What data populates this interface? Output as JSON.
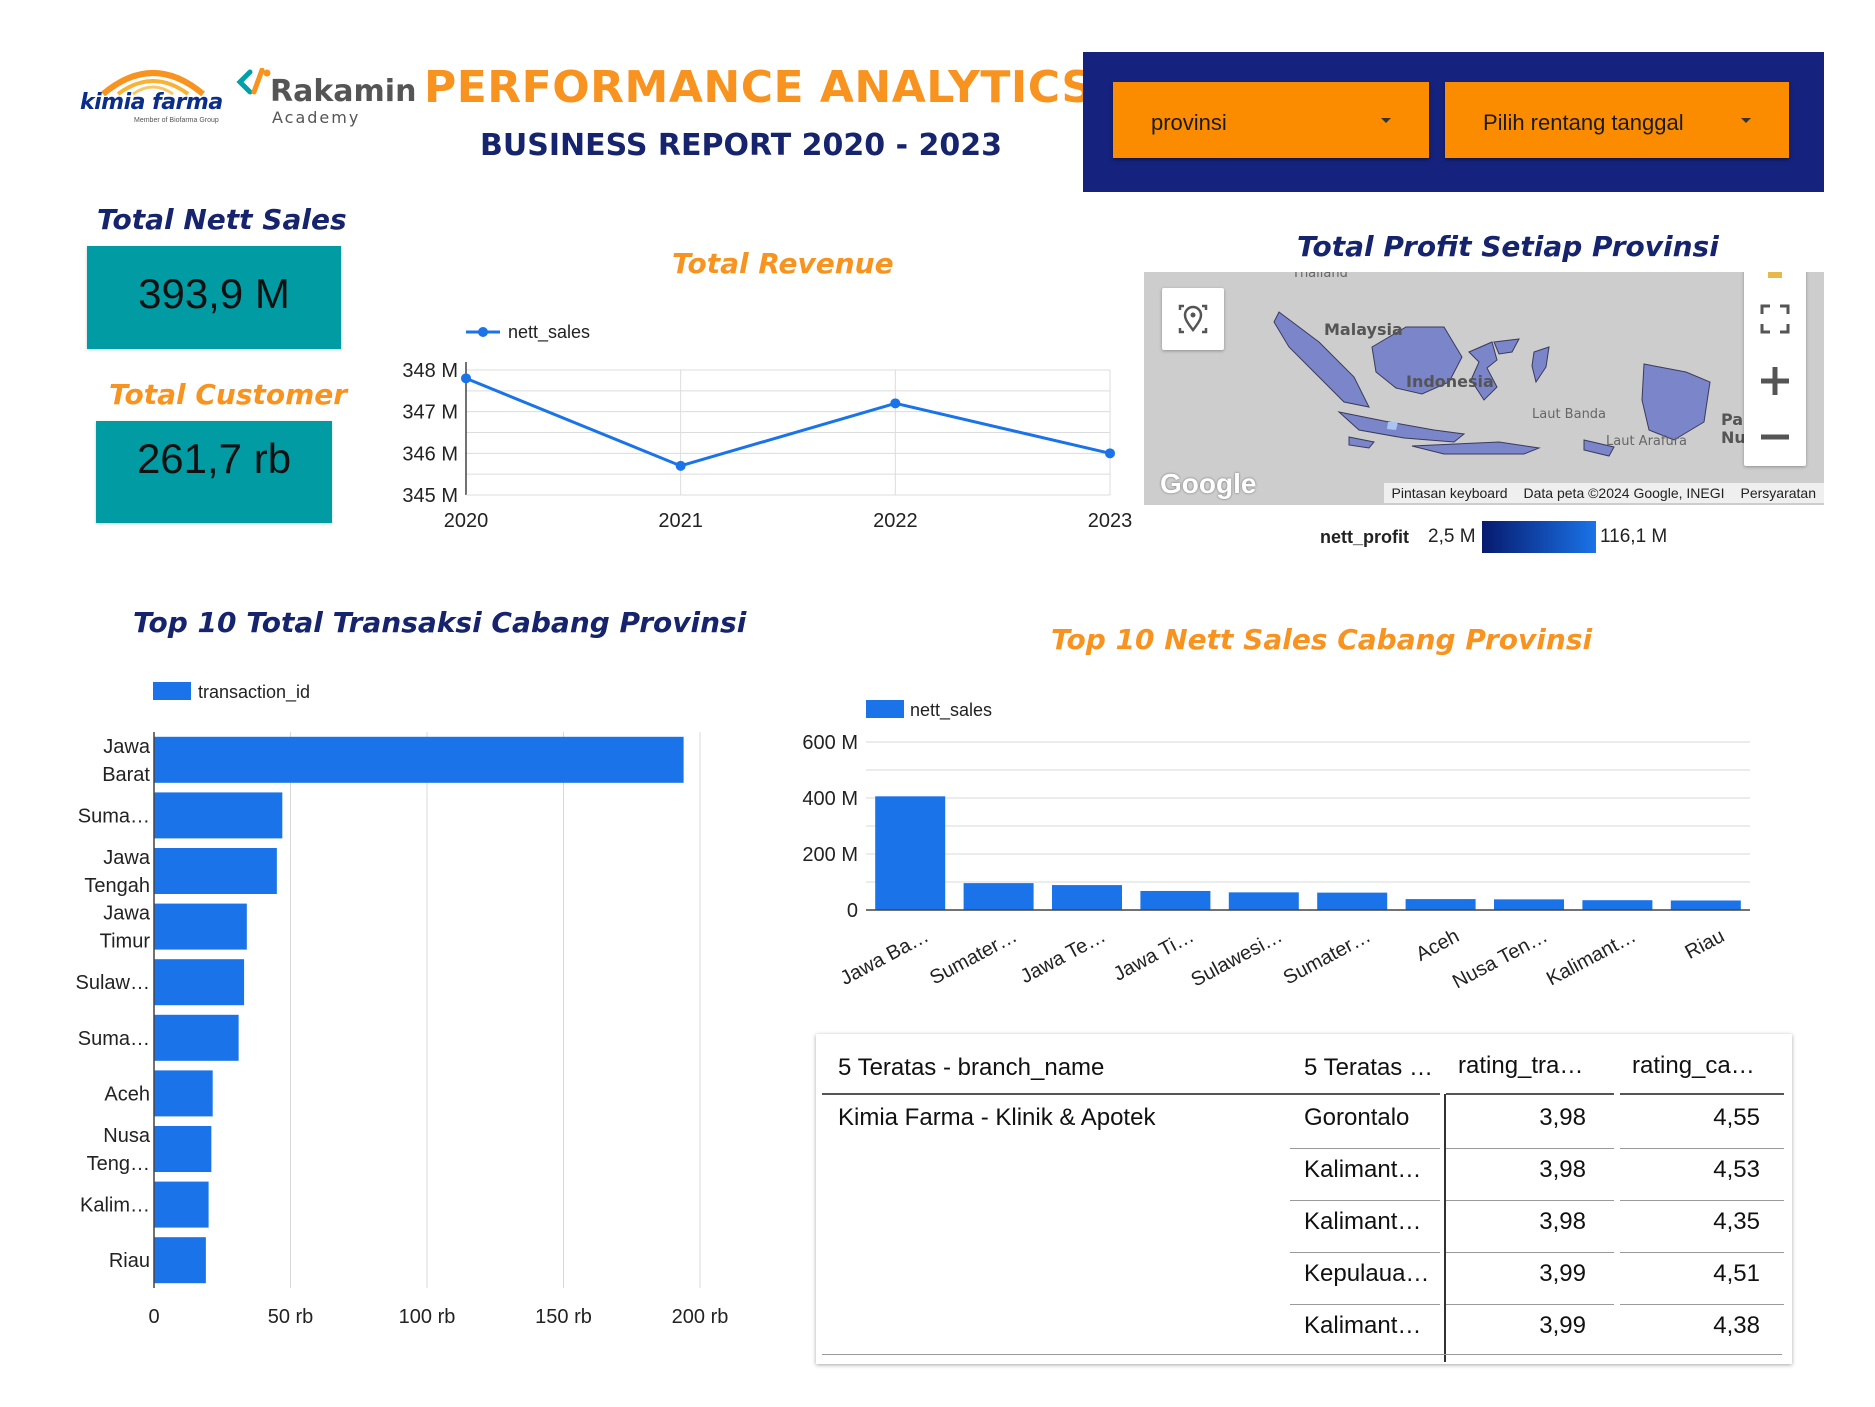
{
  "header": {
    "title": "PERFORMANCE ANALYTICS",
    "subtitle": "BUSINESS REPORT 2020 - 2023",
    "logo_kimia": "kimia farma",
    "logo_kimia_sub": "Member of Biofarma Group",
    "logo_rakamin": "Rakamin",
    "logo_rakamin_sub": "Academy"
  },
  "filters": {
    "province": "provinsi",
    "date_range": "Pilih rentang tanggal"
  },
  "kpis": {
    "nett_sales_title": "Total Nett Sales",
    "nett_sales_value": "393,9 M",
    "customer_title": "Total Customer",
    "customer_value": "261,7 rb"
  },
  "colors": {
    "accent_orange": "#f7931e",
    "navy": "#16236d",
    "teal": "#009ba3",
    "series_blue": "#1a73e8",
    "filter_orange": "#fb8c00",
    "filter_panel": "#16237e"
  },
  "chart_data": [
    {
      "type": "line",
      "title": "Total Revenue",
      "legend": "nett_sales",
      "legend_position": "top-left",
      "grid": true,
      "x": [
        "2020",
        "2021",
        "2022",
        "2023"
      ],
      "y_ticks": [
        "345 M",
        "346 M",
        "347 M",
        "348 M"
      ],
      "ylim": [
        345,
        348
      ],
      "series": [
        {
          "name": "nett_sales",
          "values": [
            347.8,
            345.7,
            347.2,
            346.0
          ]
        }
      ]
    },
    {
      "type": "bar",
      "orientation": "horizontal",
      "title": "Top 10 Total Transaksi Cabang Provinsi",
      "legend": "transaction_id",
      "legend_position": "top-left",
      "grid": true,
      "categories": [
        [
          "Jawa",
          "Barat"
        ],
        [
          "Suma…"
        ],
        [
          "Jawa",
          "Tengah"
        ],
        [
          "Jawa",
          "Timur"
        ],
        [
          "Sulaw…"
        ],
        [
          "Suma…"
        ],
        [
          "Aceh"
        ],
        [
          "Nusa",
          "Teng…"
        ],
        [
          "Kalim…"
        ],
        [
          "Riau"
        ]
      ],
      "values": [
        194000,
        47000,
        45000,
        34000,
        33000,
        31000,
        21500,
        21000,
        20000,
        19000
      ],
      "x_ticks": [
        "0",
        "50 rb",
        "100 rb",
        "150 rb",
        "200 rb"
      ],
      "xlim": [
        0,
        200000
      ]
    },
    {
      "type": "bar",
      "title": "Top 10 Nett Sales Cabang Provinsi",
      "legend": "nett_sales",
      "legend_position": "top-left",
      "grid": true,
      "categories": [
        "Jawa Ba…",
        "Sumater…",
        "Jawa Te…",
        "Jawa Ti…",
        "Sulawesi…",
        "Sumater…",
        "Aceh",
        "Nusa Ten…",
        "Kalimant…",
        "Riau"
      ],
      "values": [
        406,
        96,
        89,
        68,
        63,
        62,
        39,
        38,
        35,
        34
      ],
      "y_ticks": [
        "0",
        "200 M",
        "400 M",
        "600 M"
      ],
      "ylim": [
        0,
        600
      ]
    }
  ],
  "map": {
    "title": "Total Profit Setiap Provinsi",
    "labels": [
      "Malaysia",
      "Indonesia",
      "Laut Banda",
      "Laut Arafura",
      "Thailand",
      "Pap",
      "Nu"
    ],
    "attrib_shortcut": "Pintasan keyboard",
    "attrib_data": "Data peta ©2024 Google, INEGI",
    "attrib_terms": "Persyaratan",
    "google": "Google",
    "legend_name": "nett_profit",
    "legend_min": "2,5 M",
    "legend_max": "116,1 M"
  },
  "table": {
    "headers": [
      "5 Teratas - branch_name",
      "5 Teratas …",
      "rating_tra…",
      "rating_ca…"
    ],
    "branch": "Kimia Farma - Klinik & Apotek",
    "rows": [
      {
        "prov": "Gorontalo",
        "t": "3,98",
        "c": "4,55"
      },
      {
        "prov": "Kalimant…",
        "t": "3,98",
        "c": "4,53"
      },
      {
        "prov": "Kalimant…",
        "t": "3,98",
        "c": "4,35"
      },
      {
        "prov": "Kepulaua…",
        "t": "3,99",
        "c": "4,51"
      },
      {
        "prov": "Kalimant…",
        "t": "3,99",
        "c": "4,38"
      }
    ]
  }
}
